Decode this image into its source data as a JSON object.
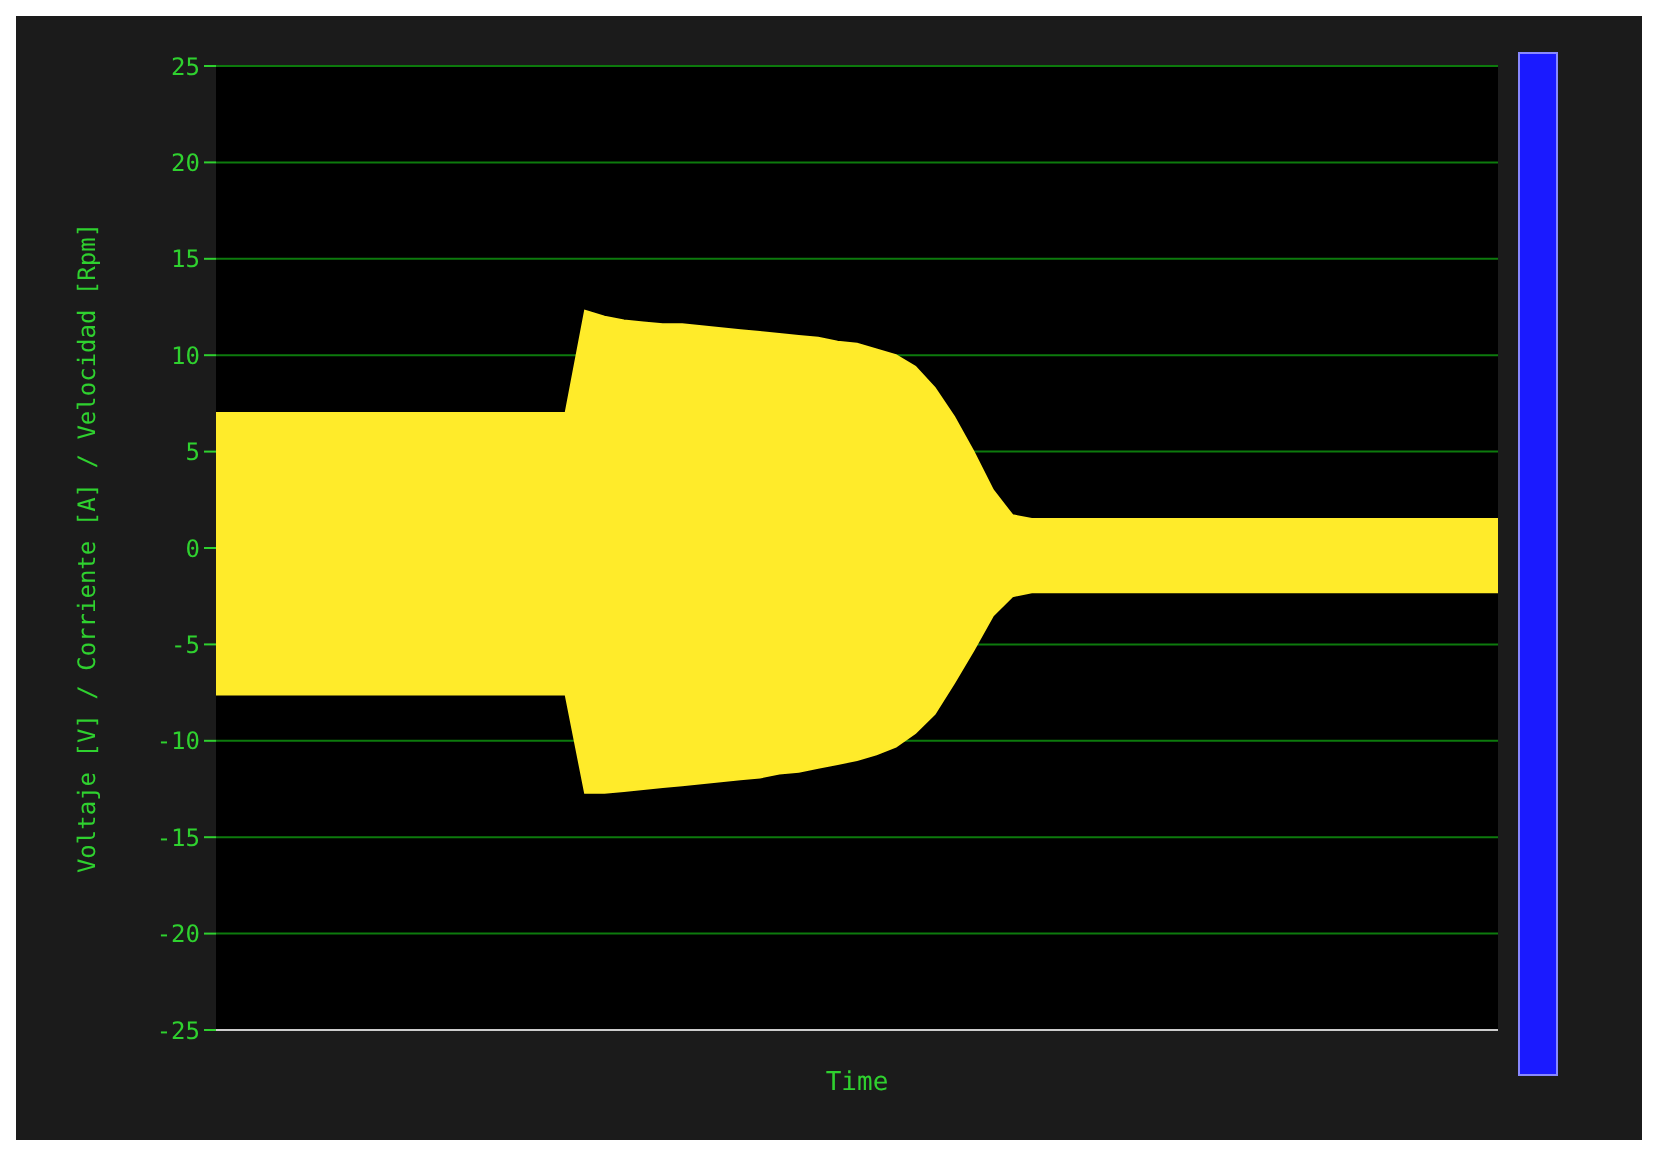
{
  "chart_data": {
    "type": "area",
    "ylabel": "Voltaje [V] / Corriente [A] / Velocidad [Rpm]",
    "xlabel": "Time",
    "categories": [
      null,
      null,
      null,
      null,
      null,
      null,
      null,
      null,
      null,
      null,
      null,
      null,
      null,
      null,
      null,
      null,
      null,
      null,
      null,
      null,
      null,
      null,
      null,
      null,
      null,
      null,
      null,
      null,
      null,
      null,
      null,
      null,
      null,
      null,
      null,
      null,
      null,
      null,
      null,
      null,
      null,
      null,
      null,
      null,
      null,
      null,
      null,
      null,
      null,
      null,
      null,
      null,
      null,
      null,
      null,
      null,
      null,
      null,
      null,
      null,
      null,
      null,
      null,
      null,
      null,
      null,
      null
    ],
    "series": [
      {
        "color": "#ffeb2a",
        "values": [
          7,
          7,
          7,
          7,
          7,
          7,
          7,
          7,
          7,
          7,
          7,
          7,
          7,
          7,
          7,
          7,
          7,
          7,
          7,
          12.3,
          12,
          11.8,
          11.7,
          11.6,
          11.6,
          11.5,
          11.4,
          11.3,
          11.2,
          11.1,
          11,
          10.9,
          10.7,
          10.6,
          10.3,
          10,
          9.4,
          8.3,
          6.8,
          5,
          3,
          1.7,
          1.5,
          1.5,
          1.5,
          1.5,
          1.5,
          1.5,
          1.5,
          1.5,
          1.5,
          1.5,
          1.5,
          1.5,
          1.5,
          1.5,
          1.5,
          1.5,
          1.5,
          1.5,
          1.5,
          1.5,
          1.5,
          1.5,
          1.5,
          1.5,
          1.5
        ]
      },
      {
        "color": "#ffeb2a",
        "values": [
          -7.6,
          -7.6,
          -7.6,
          -7.6,
          -7.6,
          -7.6,
          -7.6,
          -7.6,
          -7.6,
          -7.6,
          -7.6,
          -7.6,
          -7.6,
          -7.6,
          -7.6,
          -7.6,
          -7.6,
          -7.6,
          -7.6,
          -12.7,
          -12.7,
          -12.6,
          -12.5,
          -12.4,
          -12.3,
          -12.2,
          -12.1,
          -12,
          -11.9,
          -11.7,
          -11.6,
          -11.4,
          -11.2,
          -11,
          -10.7,
          -10.3,
          -9.6,
          -8.6,
          -7,
          -5.3,
          -3.5,
          -2.5,
          -2.3,
          -2.3,
          -2.3,
          -2.3,
          -2.3,
          -2.3,
          -2.3,
          -2.3,
          -2.3,
          -2.3,
          -2.3,
          -2.3,
          -2.3,
          -2.3,
          -2.3,
          -2.3,
          -2.3,
          -2.3,
          -2.3,
          -2.3,
          -2.3,
          -2.3,
          -2.3,
          -2.3,
          -2.3
        ]
      }
    ],
    "ylim": [
      -25,
      25
    ],
    "yticks": [
      -25,
      -20,
      -15,
      -10,
      -5,
      0,
      5,
      10,
      15,
      20,
      25
    ],
    "grid": "y"
  }
}
